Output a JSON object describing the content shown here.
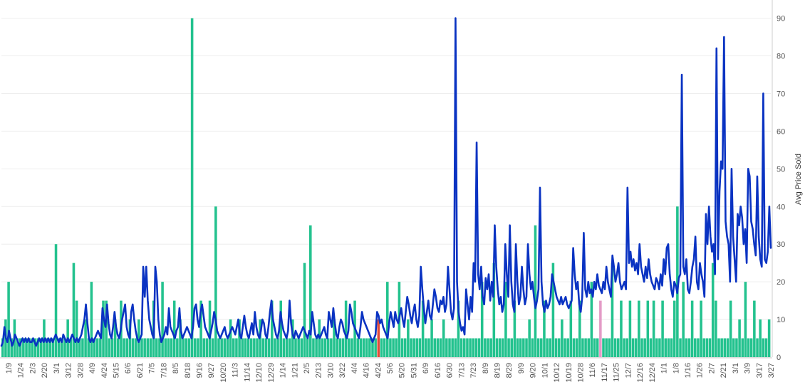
{
  "chart_data": {
    "type": "bar+line",
    "title": "",
    "colors": {
      "bars": "#23C28E",
      "bars_alt_pink": "#E39AC6",
      "bars_alt_red": "#E04B3A",
      "line": "#0A33C2",
      "gridline": "#EEEEEE",
      "axis": "#CCCCCC"
    },
    "grid": true,
    "legend": "none",
    "y_right": {
      "label": "Avg Price Sold",
      "range": [
        0,
        92
      ],
      "ticks": [
        "0",
        "10",
        "20",
        "30",
        "40",
        "50",
        "60",
        "70",
        "80",
        "90"
      ]
    },
    "x_tick_labels": [
      "1/9",
      "1/24",
      "2/3",
      "2/20",
      "3/1",
      "3/12",
      "3/28",
      "4/9",
      "4/24",
      "5/15",
      "6/6",
      "6/21",
      "7/5",
      "7/18",
      "8/5",
      "8/18",
      "9/16",
      "9/27",
      "10/20",
      "11/3",
      "11/14",
      "12/10",
      "12/29",
      "1/14",
      "1/21",
      "2/5",
      "2/13",
      "3/10",
      "3/22",
      "4/4",
      "4/16",
      "4/24",
      "5/6",
      "5/20",
      "5/31",
      "6/9",
      "6/16",
      "6/30",
      "7/13",
      "7/23",
      "8/9",
      "8/19",
      "8/29",
      "9/9",
      "9/20",
      "10/1",
      "10/12",
      "10/19",
      "10/28",
      "11/6",
      "11/17",
      "11/25",
      "12/7",
      "12/16",
      "12/24",
      "1/1",
      "1/8",
      "1/16",
      "1/26",
      "2/7",
      "2/21",
      "3/1",
      "3/9",
      "3/17",
      "3/27"
    ],
    "bar_series": {
      "base_value": 5,
      "points": 260,
      "spikes": [
        {
          "index": 1,
          "value": 10
        },
        {
          "index": 4,
          "value": 20
        },
        {
          "index": 6,
          "value": 10
        },
        {
          "index": 22,
          "value": 10
        },
        {
          "index": 29,
          "value": 30
        },
        {
          "index": 36,
          "value": 10
        },
        {
          "index": 39,
          "value": 25
        },
        {
          "index": 41,
          "value": 15
        },
        {
          "index": 45,
          "value": 10
        },
        {
          "index": 48,
          "value": 20
        },
        {
          "index": 55,
          "value": 15
        },
        {
          "index": 57,
          "value": 15
        },
        {
          "index": 61,
          "value": 10
        },
        {
          "index": 65,
          "value": 15
        },
        {
          "index": 70,
          "value": 10
        },
        {
          "index": 75,
          "value": 10
        },
        {
          "index": 82,
          "value": 15
        },
        {
          "index": 87,
          "value": 20
        },
        {
          "index": 93,
          "value": 15
        },
        {
          "index": 97,
          "value": 10
        },
        {
          "index": 103,
          "value": 90
        },
        {
          "index": 109,
          "value": 15
        },
        {
          "index": 113,
          "value": 15
        },
        {
          "index": 117,
          "value": 40
        },
        {
          "index": 124,
          "value": 10
        },
        {
          "index": 130,
          "value": 10
        },
        {
          "index": 140,
          "value": 10
        },
        {
          "index": 147,
          "value": 15
        },
        {
          "index": 152,
          "value": 15
        },
        {
          "index": 159,
          "value": 10
        },
        {
          "index": 164,
          "value": 20
        },
        {
          "index": 165,
          "value": 25
        },
        {
          "index": 168,
          "value": 35
        },
        {
          "index": 173,
          "value": 10
        },
        {
          "index": 181,
          "value": 10
        },
        {
          "index": 187,
          "value": 15
        },
        {
          "index": 192,
          "value": 15
        },
        {
          "index": 205,
          "value": 10
        },
        {
          "index": 210,
          "value": 20
        },
        {
          "index": 216,
          "value": 20
        },
        {
          "index": 222,
          "value": 10
        },
        {
          "index": 229,
          "value": 15
        },
        {
          "index": 235,
          "value": 10
        },
        {
          "index": 240,
          "value": 10
        },
        {
          "index": 248,
          "value": 15
        },
        {
          "index": 262,
          "value": 20
        },
        {
          "index": 268,
          "value": 25
        },
        {
          "index": 274,
          "value": 20
        },
        {
          "index": 280,
          "value": 15
        },
        {
          "index": 287,
          "value": 10
        },
        {
          "index": 291,
          "value": 35
        },
        {
          "index": 296,
          "value": 15
        },
        {
          "index": 300,
          "value": 25
        },
        {
          "index": 305,
          "value": 10
        },
        {
          "index": 310,
          "value": 15
        },
        {
          "index": 315,
          "value": 15
        },
        {
          "index": 322,
          "value": 20
        },
        {
          "index": 327,
          "value": 15
        },
        {
          "index": 333,
          "value": 25
        },
        {
          "index": 338,
          "value": 15
        },
        {
          "index": 343,
          "value": 15
        },
        {
          "index": 347,
          "value": 15
        },
        {
          "index": 352,
          "value": 15
        },
        {
          "index": 356,
          "value": 15
        },
        {
          "index": 360,
          "value": 15
        },
        {
          "index": 366,
          "value": 15
        },
        {
          "index": 369,
          "value": 40
        },
        {
          "index": 372,
          "value": 20
        },
        {
          "index": 376,
          "value": 15
        },
        {
          "index": 381,
          "value": 15
        },
        {
          "index": 388,
          "value": 25
        },
        {
          "index": 390,
          "value": 15
        },
        {
          "index": 397,
          "value": 15
        },
        {
          "index": 402,
          "value": 10
        },
        {
          "index": 405,
          "value": 20
        },
        {
          "index": 410,
          "value": 15
        },
        {
          "index": 414,
          "value": 10
        },
        {
          "index": 418,
          "value": 10
        }
      ],
      "highlighted": [
        {
          "index": 205,
          "value": 5,
          "color": "red"
        },
        {
          "index": 326,
          "value": 10,
          "color": "pink"
        },
        {
          "index": 327,
          "value": 10,
          "color": "pink"
        }
      ]
    },
    "line_series": {
      "name": "",
      "values": [
        3,
        4,
        8,
        5,
        4,
        7,
        5,
        3,
        4,
        6,
        5,
        4,
        3,
        4,
        5,
        4,
        5,
        4,
        5,
        4,
        4,
        5,
        4,
        3,
        4,
        5,
        4,
        5,
        4,
        5,
        4,
        5,
        4,
        5,
        4,
        5,
        6,
        5,
        4,
        5,
        4,
        6,
        5,
        4,
        5,
        4,
        5,
        6,
        5,
        4,
        5,
        4,
        5,
        6,
        8,
        10,
        14,
        9,
        5,
        4,
        5,
        4,
        5,
        6,
        7,
        6,
        5,
        13,
        10,
        8,
        14,
        9,
        6,
        5,
        8,
        12,
        8,
        6,
        5,
        7,
        10,
        12,
        14,
        8,
        6,
        5,
        12,
        14,
        10,
        7,
        5,
        4,
        5,
        6,
        24,
        16,
        24,
        15,
        10,
        8,
        6,
        5,
        24,
        20,
        10,
        6,
        4,
        5,
        6,
        8,
        6,
        13,
        8,
        7,
        6,
        5,
        7,
        8,
        13,
        7,
        5,
        6,
        7,
        8,
        7,
        6,
        5,
        8,
        13,
        14,
        10,
        8,
        12,
        14,
        11,
        8,
        7,
        6,
        5,
        7,
        9,
        12,
        10,
        7,
        6,
        5,
        6,
        7,
        8,
        6,
        5,
        6,
        7,
        8,
        7,
        6,
        8,
        10,
        6,
        5,
        8,
        11,
        8,
        6,
        5,
        7,
        9,
        6,
        12,
        8,
        6,
        5,
        7,
        10,
        9,
        6,
        5,
        8,
        12,
        15,
        10,
        8,
        6,
        5,
        7,
        12,
        9,
        7,
        6,
        5,
        7,
        15,
        9,
        6,
        5,
        7,
        6,
        5,
        6,
        7,
        8,
        7,
        6,
        5,
        7,
        6,
        12,
        9,
        6,
        5,
        6,
        5,
        6,
        7,
        8,
        6,
        5,
        12,
        10,
        8,
        13,
        9,
        6,
        5,
        8,
        10,
        9,
        7,
        6,
        5,
        7,
        14,
        12,
        9,
        8,
        7,
        6,
        5,
        8,
        12,
        10,
        9,
        8,
        7,
        6,
        5,
        4,
        5,
        6,
        12,
        11,
        9,
        10,
        8,
        7,
        6,
        5,
        9,
        12,
        10,
        8,
        12,
        10,
        9,
        11,
        13,
        10,
        8,
        12,
        16,
        14,
        11,
        9,
        12,
        14,
        10,
        8,
        11,
        24,
        18,
        13,
        9,
        12,
        15,
        11,
        10,
        14,
        18,
        16,
        13,
        12,
        15,
        14,
        16,
        12,
        14,
        24,
        18,
        12,
        10,
        13,
        90,
        20,
        12,
        9,
        7,
        8,
        6,
        18,
        14,
        10,
        16,
        12,
        25,
        20,
        57,
        22,
        18,
        24,
        16,
        14,
        21,
        18,
        22,
        15,
        20,
        16,
        35,
        24,
        18,
        14,
        16,
        12,
        14,
        30,
        22,
        16,
        35,
        20,
        14,
        12,
        30,
        20,
        14,
        16,
        24,
        18,
        14,
        16,
        30,
        22,
        18,
        20,
        16,
        13,
        15,
        18,
        45,
        20,
        14,
        12,
        15,
        13,
        14,
        16,
        22,
        20,
        18,
        16,
        15,
        14,
        16,
        14,
        15,
        16,
        14,
        13,
        14,
        15,
        29,
        22,
        18,
        20,
        14,
        12,
        16,
        33,
        18,
        16,
        20,
        17,
        18,
        16,
        20,
        18,
        22,
        19,
        18,
        17,
        20,
        18,
        24,
        20,
        18,
        16,
        27,
        24,
        20,
        22,
        25,
        20,
        18,
        19,
        20,
        18,
        45,
        25,
        28,
        24,
        26,
        23,
        25,
        22,
        30,
        24,
        22,
        20,
        24,
        21,
        26,
        22,
        20,
        19,
        18,
        21,
        20,
        18,
        22,
        19,
        26,
        22,
        29,
        30,
        22,
        18,
        16,
        20,
        19,
        17,
        21,
        22,
        75,
        24,
        22,
        26,
        18,
        17,
        20,
        24,
        26,
        32,
        20,
        18,
        25,
        22,
        20,
        16,
        38,
        30,
        40,
        32,
        28,
        30,
        22,
        82,
        26,
        44,
        52,
        50,
        85,
        36,
        32,
        30,
        20,
        50,
        32,
        26,
        20,
        38,
        35,
        40,
        37,
        30,
        34,
        25,
        50,
        48,
        36,
        34,
        30,
        27,
        48,
        32,
        26,
        24,
        70,
        26,
        25,
        28,
        40,
        29
      ]
    }
  }
}
